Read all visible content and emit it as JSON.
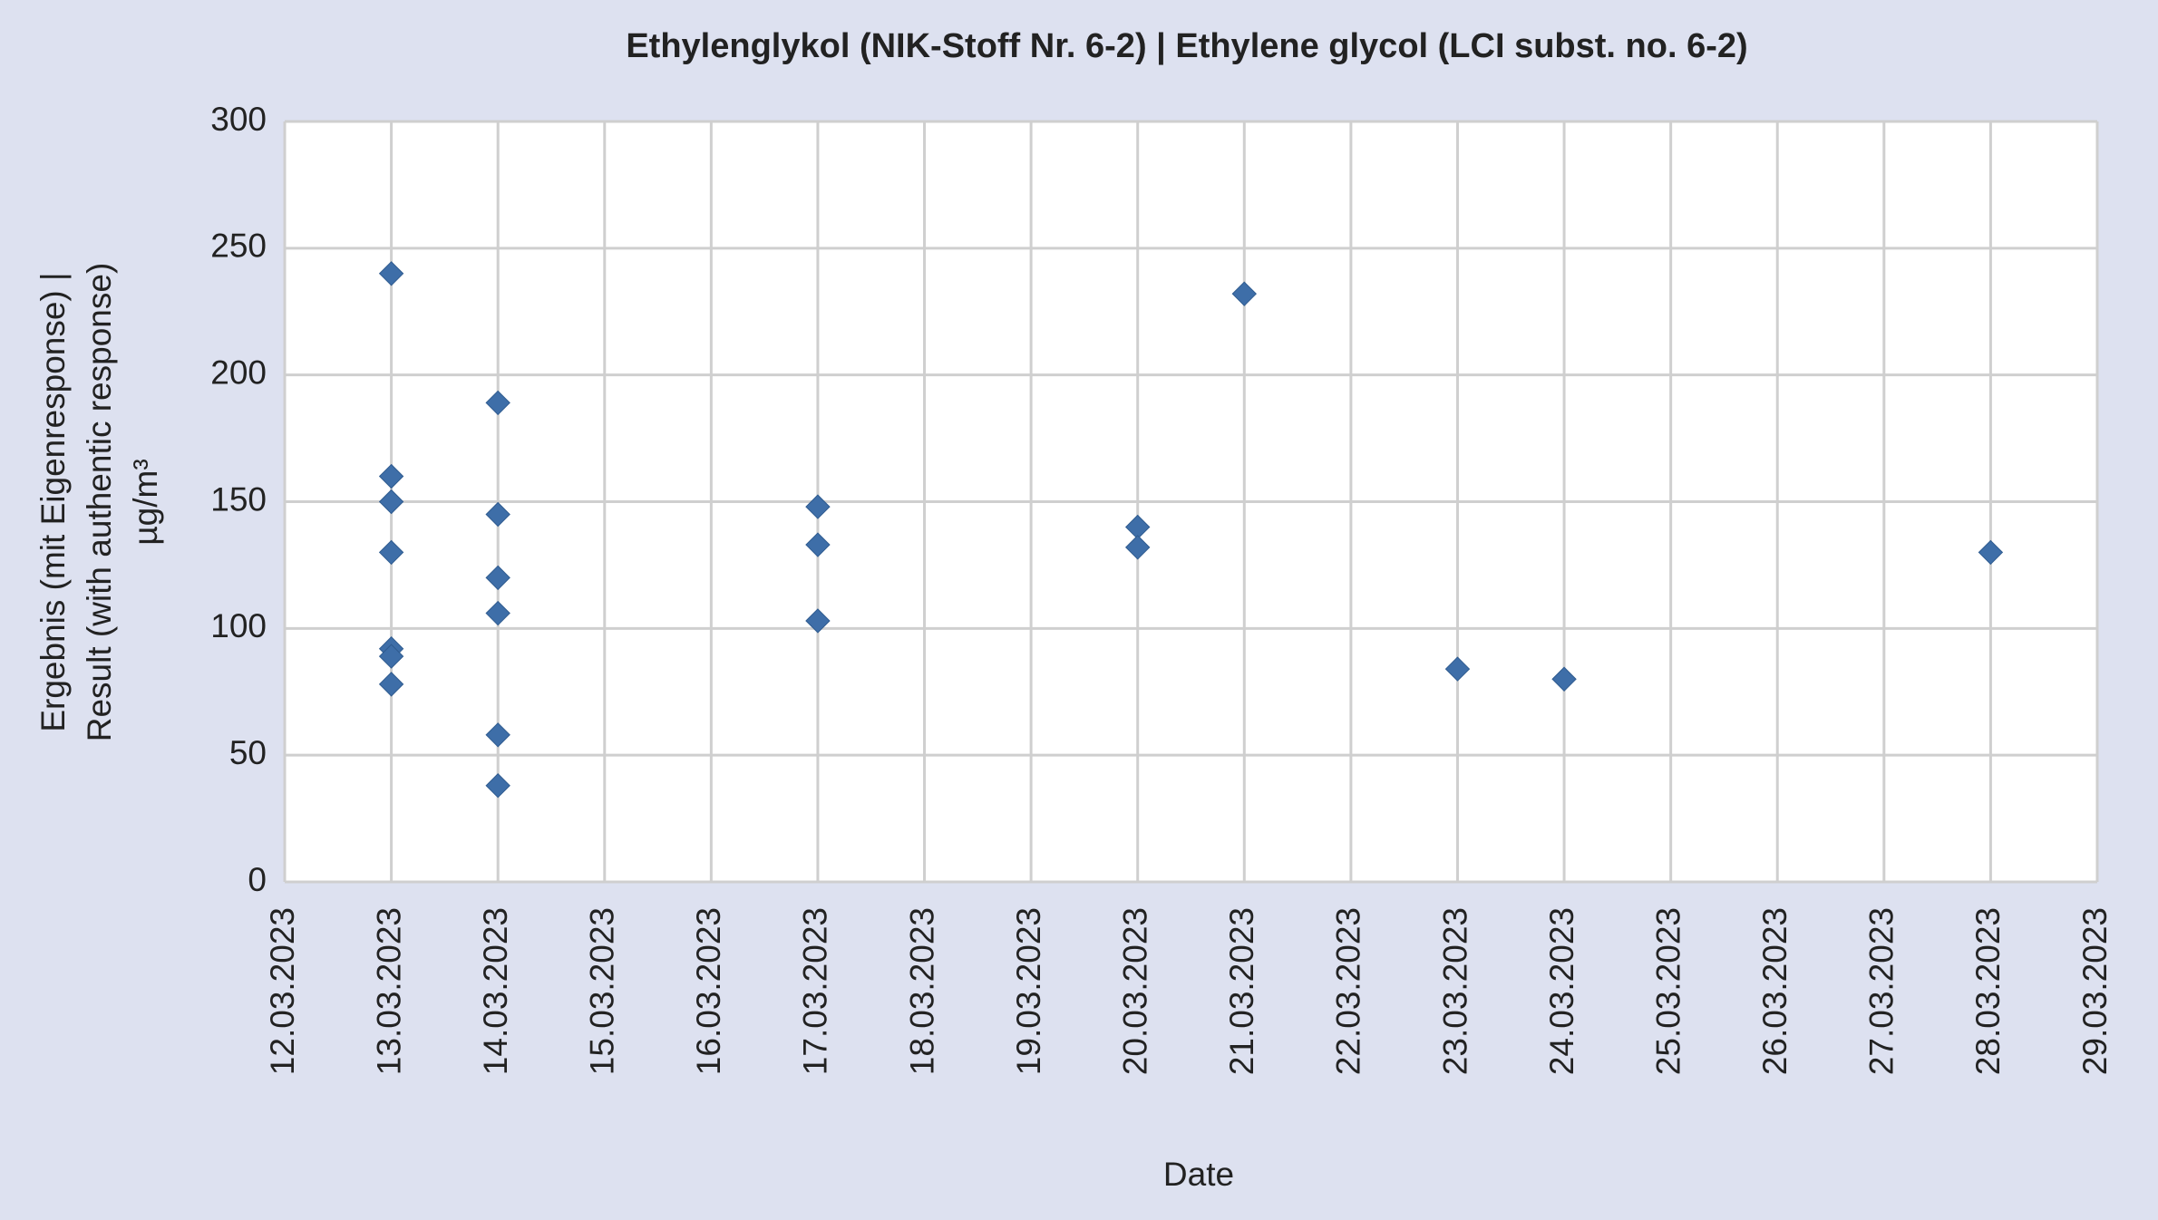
{
  "chart_data": {
    "type": "scatter",
    "title": "Ethylenglykol (NIK-Stoff Nr. 6-2) | Ethylene glycol (LCI subst. no. 6-2)",
    "xlabel": "Date",
    "ylabel": [
      "Ergebnis (mit Eigenresponse) |",
      "Result (with authentic response)",
      "µg/m³"
    ],
    "x": [
      "13.03.2023",
      "13.03.2023",
      "13.03.2023",
      "13.03.2023",
      "13.03.2023",
      "13.03.2023",
      "13.03.2023",
      "14.03.2023",
      "14.03.2023",
      "14.03.2023",
      "14.03.2023",
      "14.03.2023",
      "14.03.2023",
      "17.03.2023",
      "17.03.2023",
      "17.03.2023",
      "20.03.2023",
      "20.03.2023",
      "21.03.2023",
      "23.03.2023",
      "24.03.2023",
      "28.03.2023"
    ],
    "values": [
      240,
      160,
      150,
      130,
      92,
      89,
      78,
      189,
      145,
      120,
      106,
      58,
      38,
      148,
      133,
      103,
      140,
      132,
      232,
      84,
      80,
      130
    ],
    "color": "#3e6ea8",
    "xlim": [
      "12.03.2023",
      "29.03.2023"
    ],
    "xticks": [
      "12.03.2023",
      "13.03.2023",
      "14.03.2023",
      "15.03.2023",
      "16.03.2023",
      "17.03.2023",
      "18.03.2023",
      "19.03.2023",
      "20.03.2023",
      "21.03.2023",
      "22.03.2023",
      "23.03.2023",
      "24.03.2023",
      "25.03.2023",
      "26.03.2023",
      "27.03.2023",
      "28.03.2023",
      "29.03.2023"
    ],
    "ylim": [
      0,
      300
    ],
    "yticks": [
      0,
      50,
      100,
      150,
      200,
      250,
      300
    ],
    "grid": true
  }
}
